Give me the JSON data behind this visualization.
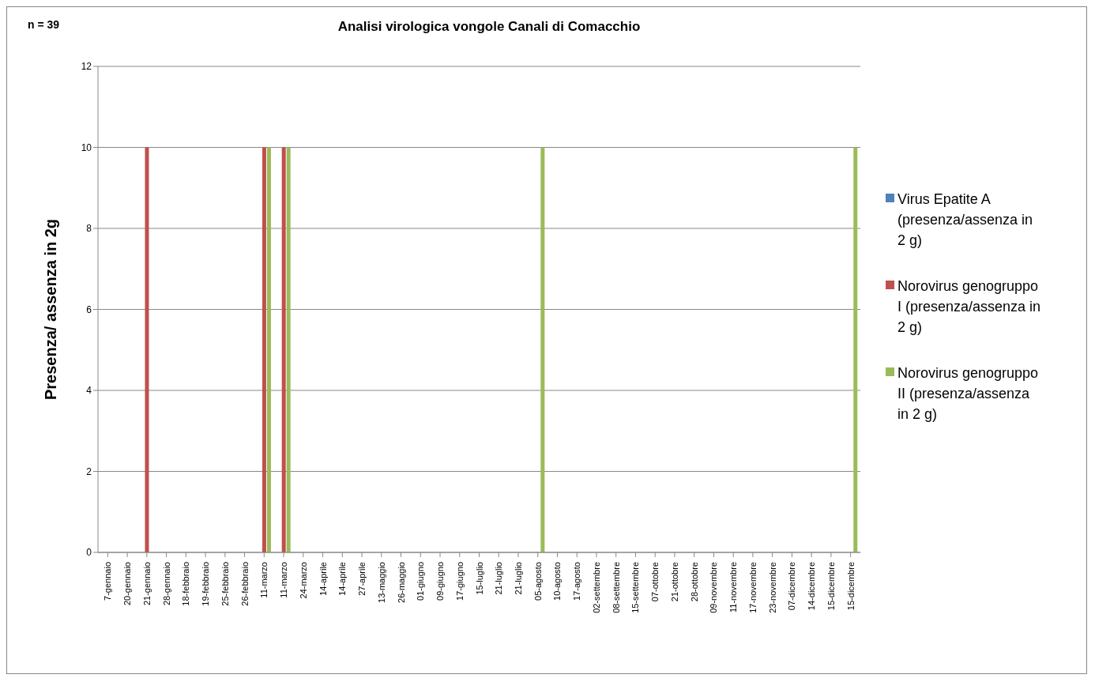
{
  "chart_data": {
    "type": "bar",
    "title": "Analisi virologica vongole Canali di Comacchio",
    "ylabel": "Presenza/ assenza in 2g",
    "annotations": [
      "n = 39"
    ],
    "categories": [
      "7-gennaio",
      "20-gennaio",
      "21-gennaio",
      "28-gennaio",
      "18-febbraio",
      "19-febbraio",
      "25-febbraio",
      "26-febbraio",
      "11-marzo",
      "11-marzo",
      "24-marzo",
      "14-aprile",
      "14-aprile",
      "27-aprile",
      "13-maggio",
      "26-maggio",
      "01-giugno",
      "09-giugno",
      "17-giugno",
      "15-luglio",
      "21-luglio",
      "21-luglio",
      "05-agosto",
      "10-agosto",
      "17-agosto",
      "02-settembre",
      "08-settembre",
      "15-settembre",
      "07-ottobre",
      "21-ottobre",
      "28-ottobre",
      "09-novembre",
      "11-novembre",
      "17-novembre",
      "23-novembre",
      "07-dicembre",
      "14-dicembre",
      "15-dicembre",
      "15-dicembre"
    ],
    "series": [
      {
        "name": "Virus Epatite A (presenza/assenza in 2 g)",
        "color": "#4f81bd",
        "values": [
          0,
          0,
          0,
          0,
          0,
          0,
          0,
          0,
          0,
          0,
          0,
          0,
          0,
          0,
          0,
          0,
          0,
          0,
          0,
          0,
          0,
          0,
          0,
          0,
          0,
          0,
          0,
          0,
          0,
          0,
          0,
          0,
          0,
          0,
          0,
          0,
          0,
          0,
          0
        ]
      },
      {
        "name": "Norovirus genogruppo I (presenza/assenza in 2 g)",
        "color": "#c0504d",
        "values": [
          0,
          0,
          10,
          0,
          0,
          0,
          0,
          0,
          10,
          10,
          0,
          0,
          0,
          0,
          0,
          0,
          0,
          0,
          0,
          0,
          0,
          0,
          0,
          0,
          0,
          0,
          0,
          0,
          0,
          0,
          0,
          0,
          0,
          0,
          0,
          0,
          0,
          0,
          0
        ]
      },
      {
        "name": "Norovirus genogruppo II (presenza/assenza in 2 g)",
        "color": "#9bbb59",
        "values": [
          0,
          0,
          0,
          0,
          0,
          0,
          0,
          0,
          10,
          10,
          0,
          0,
          0,
          0,
          0,
          0,
          0,
          0,
          0,
          0,
          0,
          0,
          10,
          0,
          0,
          0,
          0,
          0,
          0,
          0,
          0,
          0,
          0,
          0,
          0,
          0,
          0,
          0,
          10
        ]
      }
    ],
    "ylim": [
      0,
      12
    ],
    "yticks": [
      0,
      2,
      4,
      6,
      8,
      10,
      12
    ],
    "grid": "y",
    "legend": "right"
  }
}
